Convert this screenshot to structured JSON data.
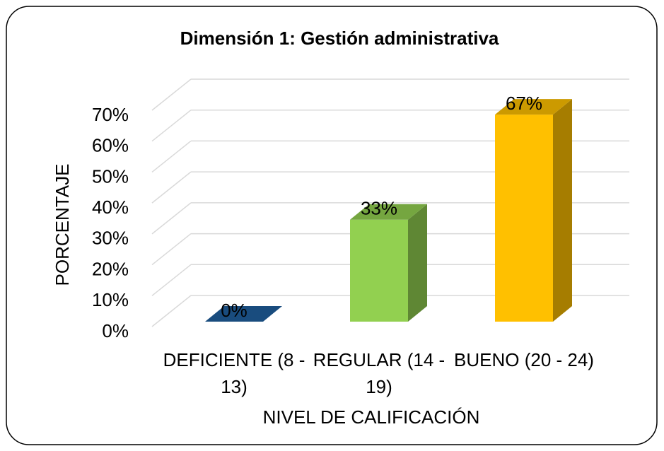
{
  "chart_data": {
    "type": "bar3d",
    "title": "Dimensión 1: Gestión administrativa",
    "categories": [
      "DEFICIENTE (8 - 13)",
      "REGULAR (14 - 19)",
      "BUENO (20 - 24)"
    ],
    "values": [
      0,
      33,
      67
    ],
    "value_labels": [
      "0%",
      "33%",
      "67%"
    ],
    "colors": [
      "#1f5f9e",
      "#92d050",
      "#ffc000"
    ],
    "ylim": [
      0,
      70
    ],
    "yticks": [
      {
        "value": 0,
        "label": "0%"
      },
      {
        "value": 10,
        "label": "10%"
      },
      {
        "value": 20,
        "label": "20%"
      },
      {
        "value": 30,
        "label": "30%"
      },
      {
        "value": 40,
        "label": "40%"
      },
      {
        "value": 50,
        "label": "50%"
      },
      {
        "value": 60,
        "label": "60%"
      },
      {
        "value": 70,
        "label": "70%"
      }
    ],
    "y_label": "PORCENTAJE",
    "x_label": "NIVEL DE CALIFICACIÓN",
    "grid": true
  }
}
